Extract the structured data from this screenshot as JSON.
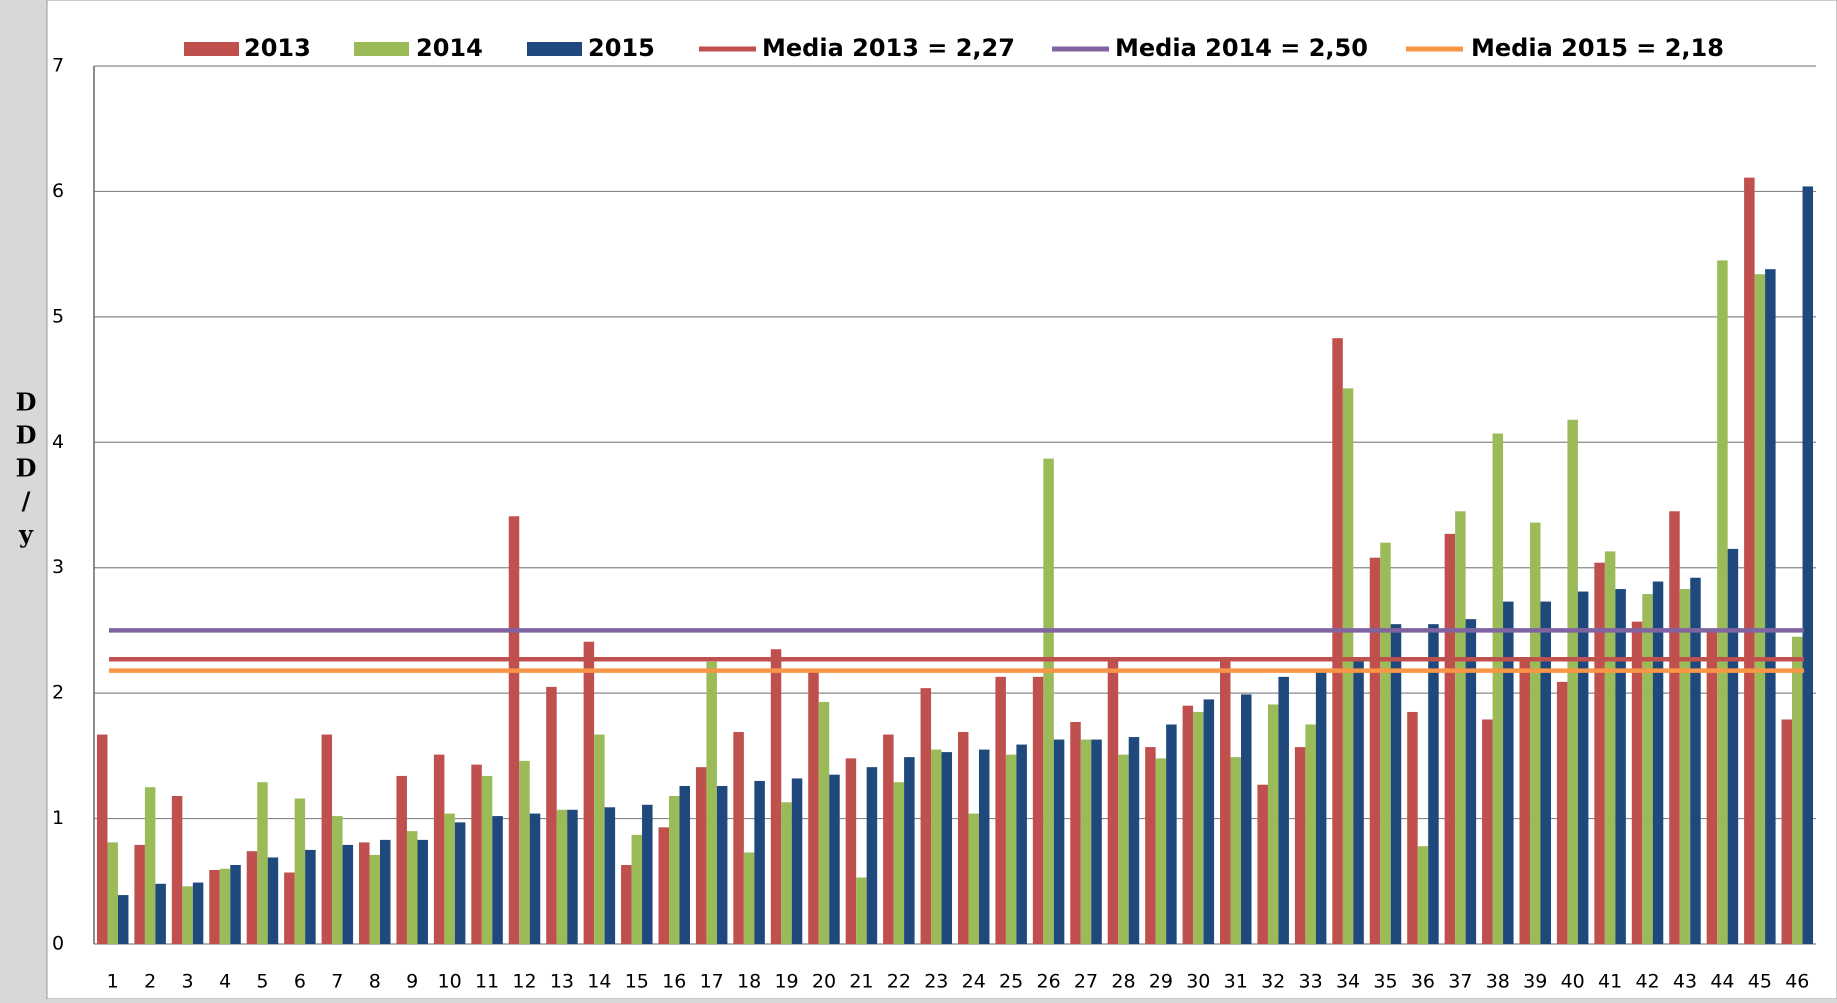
{
  "chart_data": {
    "type": "bar",
    "y_label": "DDD/y",
    "categories": [
      "1",
      "2",
      "3",
      "4",
      "5",
      "6",
      "7",
      "8",
      "9",
      "10",
      "11",
      "12",
      "13",
      "14",
      "15",
      "16",
      "17",
      "18",
      "19",
      "20",
      "21",
      "22",
      "23",
      "24",
      "25",
      "26",
      "27",
      "28",
      "29",
      "30",
      "31",
      "32",
      "33",
      "34",
      "35",
      "36",
      "37",
      "38",
      "39",
      "40",
      "41",
      "42",
      "43",
      "44",
      "45",
      "46"
    ],
    "series": [
      {
        "name": "2013",
        "color": "#c0504d",
        "values": [
          1.67,
          0.79,
          1.18,
          0.59,
          0.74,
          0.57,
          1.67,
          0.81,
          1.34,
          1.51,
          1.43,
          3.41,
          2.05,
          2.41,
          0.63,
          0.93,
          1.41,
          1.69,
          2.35,
          2.19,
          1.48,
          1.67,
          2.04,
          1.69,
          2.13,
          2.13,
          1.77,
          2.27,
          1.57,
          1.9,
          2.27,
          1.27,
          1.57,
          4.83,
          3.08,
          1.85,
          3.27,
          1.79,
          2.27,
          2.09,
          3.04,
          2.57,
          3.45,
          2.5,
          6.11,
          1.79
        ]
      },
      {
        "name": "2014",
        "color": "#9bbb59",
        "values": [
          0.81,
          1.25,
          0.46,
          0.6,
          1.29,
          1.16,
          1.02,
          0.71,
          0.9,
          1.04,
          1.34,
          1.46,
          1.07,
          1.67,
          0.87,
          1.18,
          2.25,
          0.73,
          1.13,
          1.93,
          0.53,
          1.29,
          1.55,
          1.04,
          1.51,
          3.87,
          1.63,
          1.51,
          1.48,
          1.85,
          1.49,
          1.91,
          1.75,
          4.43,
          3.2,
          0.78,
          3.45,
          4.07,
          3.36,
          4.18,
          3.13,
          2.79,
          2.83,
          5.45,
          5.34,
          2.45
        ]
      },
      {
        "name": "2015",
        "color": "#1f497d",
        "values": [
          0.39,
          0.48,
          0.49,
          0.63,
          0.69,
          0.75,
          0.79,
          0.83,
          0.83,
          0.97,
          1.02,
          1.04,
          1.07,
          1.09,
          1.11,
          1.26,
          1.26,
          1.3,
          1.32,
          1.35,
          1.41,
          1.49,
          1.53,
          1.55,
          1.59,
          1.63,
          1.63,
          1.65,
          1.75,
          1.95,
          1.99,
          2.13,
          2.19,
          2.27,
          2.55,
          2.55,
          2.59,
          2.73,
          2.73,
          2.81,
          2.83,
          2.89,
          2.92,
          3.15,
          5.38,
          6.04
        ]
      }
    ],
    "lines": [
      {
        "name": "Media 2013 = 2,27",
        "color": "#c0504d",
        "value": 2.27
      },
      {
        "name": "Media 2014 = 2,50",
        "color": "#8064a2",
        "value": 2.5
      },
      {
        "name": "Media 2015 = 2,18",
        "color": "#f79646",
        "value": 2.18
      }
    ],
    "ylim": [
      0,
      7
    ],
    "yticks": [
      0,
      1,
      2,
      3,
      4,
      5,
      6,
      7
    ],
    "grid": true
  }
}
